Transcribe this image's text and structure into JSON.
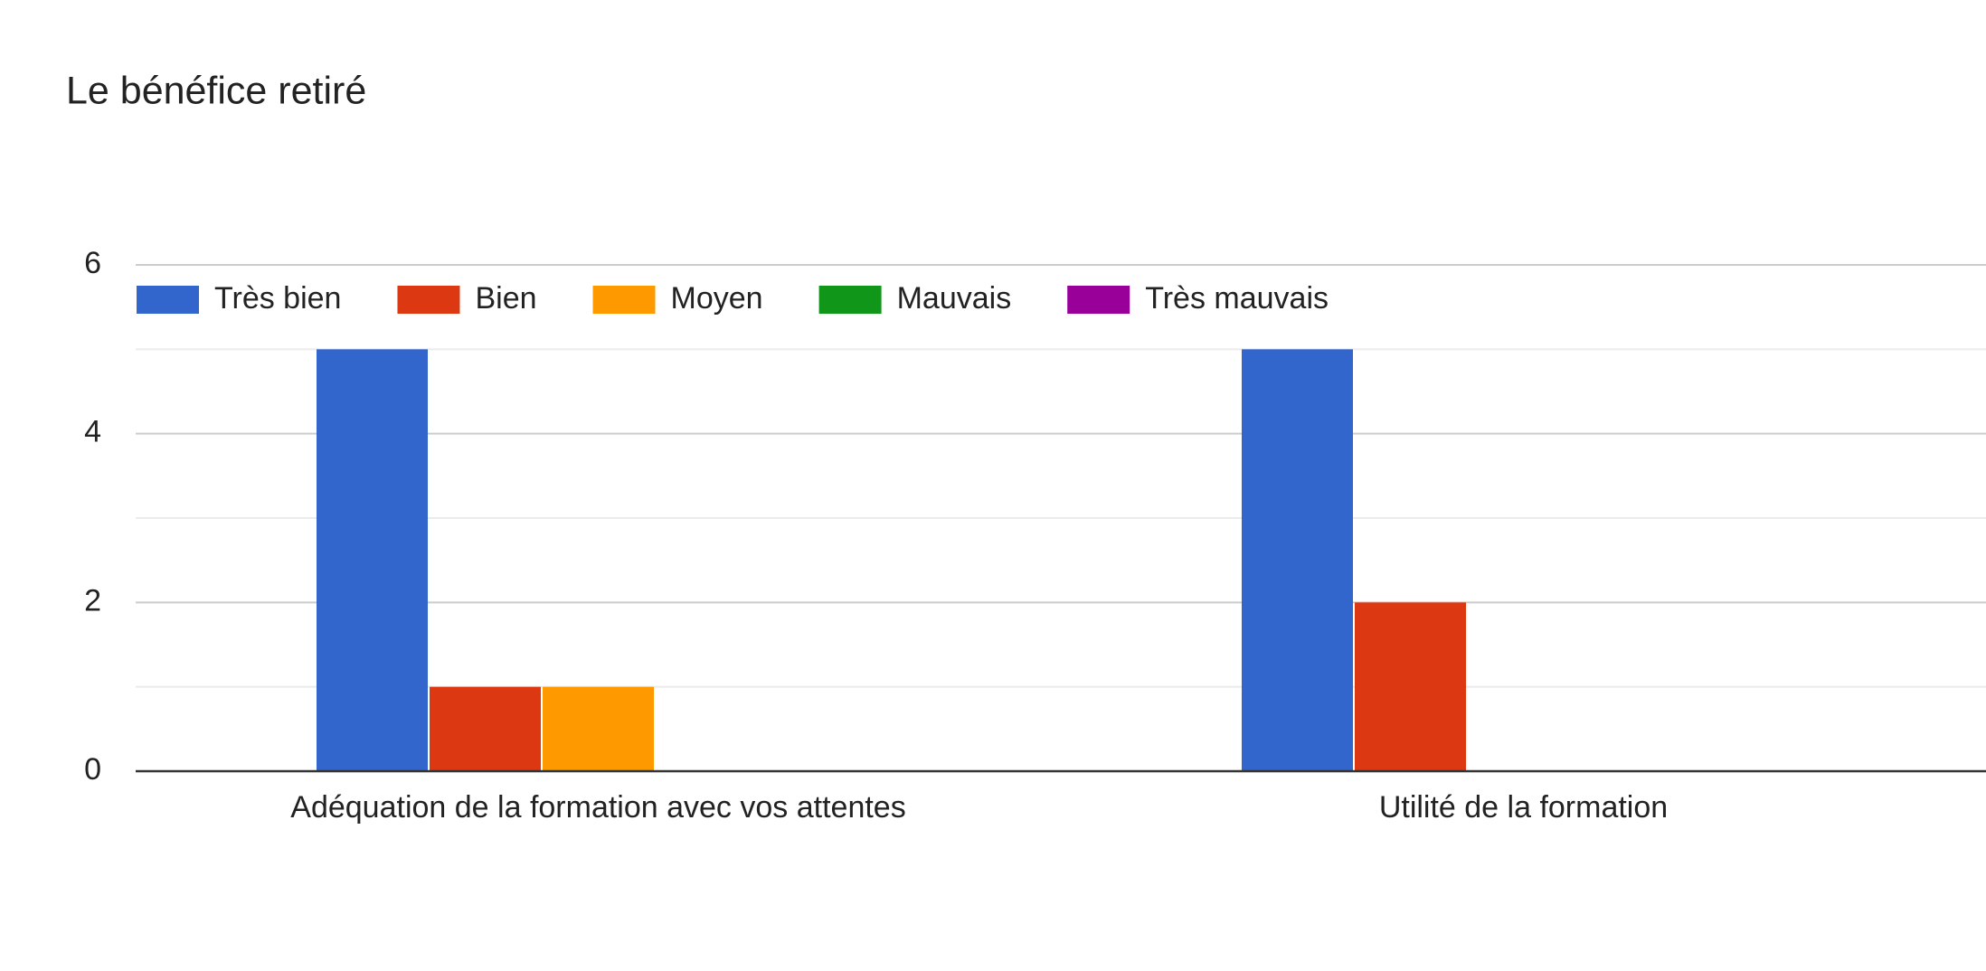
{
  "chart_data": {
    "type": "bar",
    "title": "Le bénéfice retiré",
    "categories": [
      "Adéquation de la formation avec vos attentes",
      "Utilité de la formation"
    ],
    "series": [
      {
        "name": "Très bien",
        "color": "#3366cc",
        "values": [
          5,
          5
        ]
      },
      {
        "name": "Bien",
        "color": "#dc3912",
        "values": [
          1,
          2
        ]
      },
      {
        "name": "Moyen",
        "color": "#ff9900",
        "values": [
          1,
          0
        ]
      },
      {
        "name": "Mauvais",
        "color": "#109618",
        "values": [
          0,
          0
        ]
      },
      {
        "name": "Très mauvais",
        "color": "#990099",
        "values": [
          0,
          0
        ]
      }
    ],
    "ylim": [
      0,
      6
    ],
    "yticks": [
      0,
      2,
      4,
      6
    ],
    "grid": true,
    "minor_grid": true,
    "legend": "top"
  }
}
